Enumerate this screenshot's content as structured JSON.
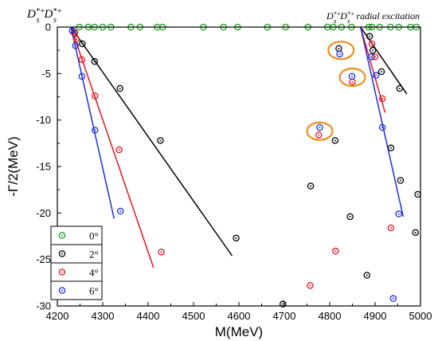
{
  "chart_data": {
    "type": "scatter",
    "xlabel": "M(MeV)",
    "ylabel": "-Γ/2(MeV)",
    "xlim": [
      4200,
      5000
    ],
    "ylim": [
      -30,
      0
    ],
    "xticks": [
      "4200",
      "4300",
      "4400",
      "4500",
      "4600",
      "4700",
      "4800",
      "4900",
      "5000"
    ],
    "yticks": [
      "0",
      "-5",
      "-10",
      "-15",
      "-20",
      "-25",
      "-30"
    ],
    "annotation_left": {
      "base": "D",
      "sub1": "s",
      "sup1": "*+",
      "sub2": "s",
      "sup2": "*+"
    },
    "annotation_right": {
      "base": "D",
      "sub1": "s",
      "sup1": "*+",
      "sub2": "s",
      "sup2": "*+",
      "tail": "radial excitation"
    },
    "legend_position": "bottom-left",
    "series": [
      {
        "name": "0°",
        "color": "#1a9c1a",
        "points": [
          [
            4248,
            0
          ],
          [
            4268,
            0
          ],
          [
            4282,
            0
          ],
          [
            4300,
            0
          ],
          [
            4318,
            0
          ],
          [
            4362,
            0
          ],
          [
            4382,
            0
          ],
          [
            4420,
            0
          ],
          [
            4432,
            0
          ],
          [
            4522,
            0
          ],
          [
            4566,
            0
          ],
          [
            4597,
            0
          ],
          [
            4663,
            0
          ],
          [
            4703,
            0
          ],
          [
            4752,
            0
          ],
          [
            4795,
            0
          ],
          [
            4808,
            0
          ],
          [
            4826,
            0
          ],
          [
            4848,
            0
          ],
          [
            4886,
            0
          ],
          [
            4893,
            0
          ],
          [
            4910,
            0
          ],
          [
            4934,
            0
          ],
          [
            4952,
            0
          ],
          [
            4978,
            0
          ],
          [
            4991,
            0
          ]
        ],
        "lines": []
      },
      {
        "name": "2°",
        "color": "#000000",
        "points": [
          [
            4238,
            -0.6
          ],
          [
            4255,
            -1.8
          ],
          [
            4282,
            -3.7
          ],
          [
            4338,
            -6.6
          ],
          [
            4427,
            -12.2
          ],
          [
            4594,
            -22.7
          ],
          [
            4697,
            -29.8
          ],
          [
            4812,
            -12.2
          ],
          [
            4820,
            -2.3
          ],
          [
            4845,
            -20.4
          ],
          [
            4758,
            -17.1
          ],
          [
            4882,
            -26.7
          ],
          [
            4888,
            -1.0
          ],
          [
            4895,
            -2.5
          ],
          [
            4914,
            -4.8
          ],
          [
            4935,
            -13.0
          ],
          [
            4954,
            -6.6
          ],
          [
            4956,
            -16.5
          ],
          [
            4994,
            -18.0
          ],
          [
            4989,
            -22.1
          ]
        ],
        "lines": [
          [
            [
              4230,
              0
            ],
            [
              4585,
              -24.6
            ]
          ],
          [
            [
              4868,
              0
            ],
            [
              4970,
              -7.2
            ]
          ]
        ]
      },
      {
        "name": "4°",
        "color": "#e8141e",
        "points": [
          [
            4237,
            -0.6
          ],
          [
            4242,
            -1.3
          ],
          [
            4254,
            -3.5
          ],
          [
            4283,
            -7.4
          ],
          [
            4336,
            -13.2
          ],
          [
            4429,
            -24.2
          ],
          [
            4757,
            -27.8
          ],
          [
            4813,
            -24.1
          ],
          [
            4776,
            -11.6
          ],
          [
            4850,
            -5.9
          ],
          [
            4893,
            -1.8
          ],
          [
            4900,
            -3.2
          ],
          [
            4916,
            -7.7
          ],
          [
            4935,
            -21.6
          ]
        ],
        "lines": [
          [
            [
              4230,
              0
            ],
            [
              4412,
              -25.9
            ]
          ],
          [
            [
              4868,
              0
            ],
            [
              4922,
              -9.2
            ]
          ]
        ]
      },
      {
        "name": "6°",
        "color": "#1c2ee0",
        "points": [
          [
            4233,
            -0.4
          ],
          [
            4240,
            -2.0
          ],
          [
            4254,
            -5.3
          ],
          [
            4283,
            -11.1
          ],
          [
            4339,
            -19.8
          ],
          [
            4778,
            -10.8
          ],
          [
            4822,
            -2.9
          ],
          [
            4849,
            -5.3
          ],
          [
            4892,
            -3.2
          ],
          [
            4902,
            -5.2
          ],
          [
            4916,
            -10.8
          ],
          [
            4952,
            -20.1
          ],
          [
            4940,
            -29.2
          ]
        ],
        "lines": [
          [
            [
              4230,
              0
            ],
            [
              4325,
              -20.6
            ]
          ],
          [
            [
              4868,
              0
            ],
            [
              4962,
              -20.4
            ]
          ]
        ]
      }
    ],
    "highlights": [
      [
        4825,
        -2.5
      ],
      [
        4850,
        -5.4
      ],
      [
        4778,
        -11.2
      ]
    ],
    "highlight_color": "#f08c19"
  }
}
